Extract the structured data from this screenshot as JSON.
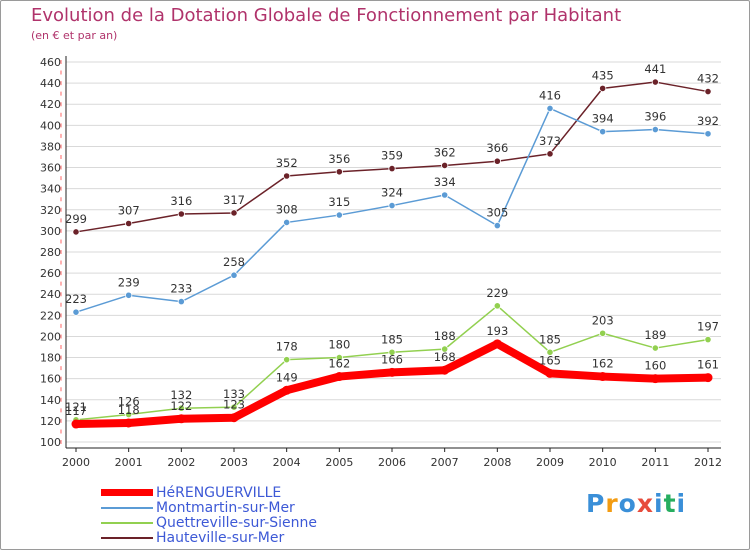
{
  "chart_data": {
    "type": "line",
    "title": "Evolution de la Dotation Globale de Fonctionnement par Habitant",
    "subtitle": "(en € et par an)",
    "xlabel": "",
    "ylabel": "",
    "ylim": [
      100,
      460
    ],
    "ytick_step": 20,
    "grid": "horizontal",
    "categories": [
      "2000",
      "2001",
      "2002",
      "2003",
      "2004",
      "2005",
      "2006",
      "2007",
      "2008",
      "2009",
      "2010",
      "2011",
      "2012"
    ],
    "series": [
      {
        "name": "HéRENGUERVILLE",
        "color": "#ff0000",
        "values": [
          117,
          118,
          122,
          123,
          149,
          162,
          166,
          168,
          193,
          165,
          162,
          160,
          161
        ]
      },
      {
        "name": "Montmartin-sur-Mer",
        "color": "#5b9bd5",
        "values": [
          223,
          239,
          233,
          258,
          308,
          315,
          324,
          334,
          305,
          416,
          394,
          396,
          392
        ]
      },
      {
        "name": "Quettreville-sur-Sienne",
        "color": "#92d050",
        "values": [
          121,
          126,
          132,
          133,
          178,
          180,
          185,
          188,
          229,
          185,
          203,
          189,
          197
        ]
      },
      {
        "name": "Hauteville-sur-Mer",
        "color": "#6b2229",
        "values": [
          299,
          307,
          316,
          317,
          352,
          356,
          359,
          362,
          366,
          373,
          435,
          441,
          432
        ]
      }
    ]
  },
  "brand": {
    "letters": [
      "P",
      "r",
      "o",
      "x",
      "i",
      "t",
      "i"
    ],
    "colors": [
      "#3a8fd8",
      "#f39c12",
      "#3a8fd8",
      "#e74c3c",
      "#3a8fd8",
      "#27ae60",
      "#3a8fd8"
    ]
  }
}
